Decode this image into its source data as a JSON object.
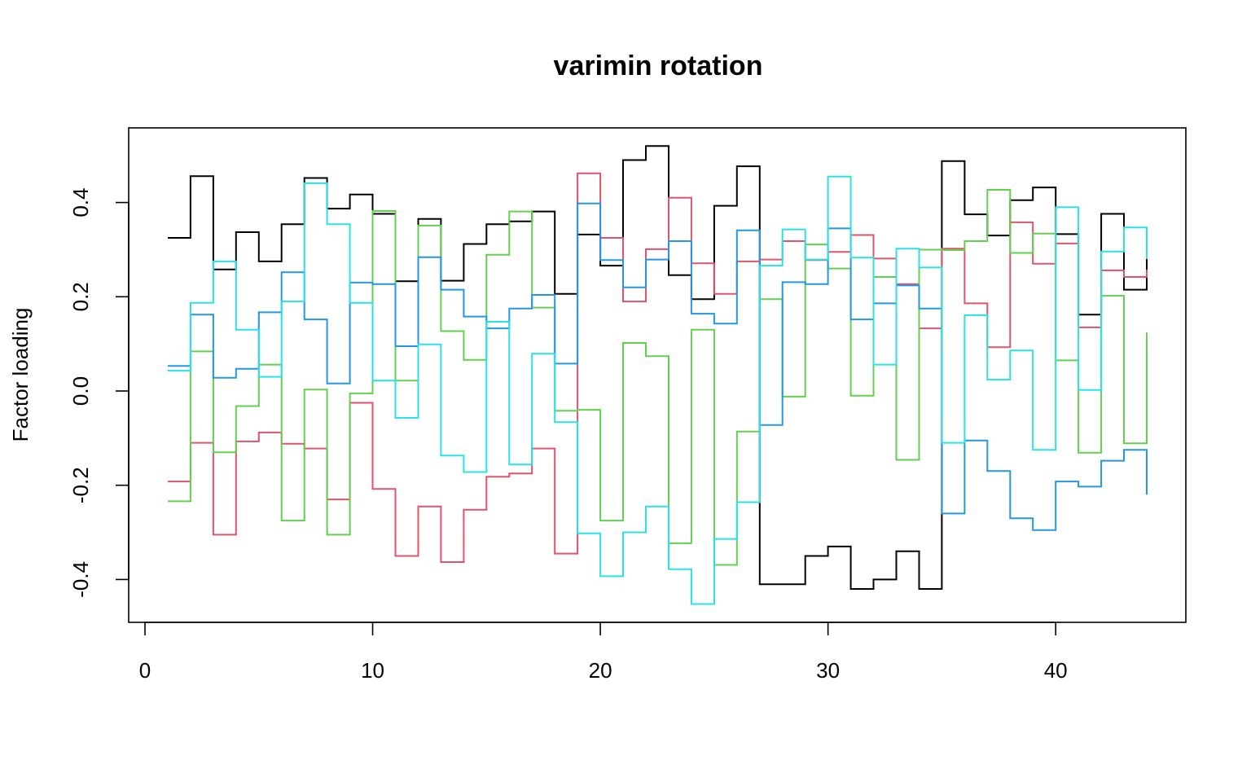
{
  "chart_data": {
    "type": "line",
    "step": true,
    "title": "varimin rotation",
    "xlabel": "",
    "ylabel": "Factor loading",
    "xlim": [
      0,
      45
    ],
    "ylim": [
      -0.5,
      0.55
    ],
    "xticks": [
      0,
      10,
      20,
      30,
      40
    ],
    "yticks": [
      -0.4,
      -0.2,
      0.0,
      0.2,
      0.4
    ],
    "ytick_labels": [
      "-0.4",
      "-0.2",
      "0.0",
      "0.2",
      "0.4"
    ],
    "x": [
      1,
      2,
      3,
      4,
      5,
      6,
      7,
      8,
      9,
      10,
      11,
      12,
      13,
      14,
      15,
      16,
      17,
      18,
      19,
      20,
      21,
      22,
      23,
      24,
      25,
      26,
      27,
      28,
      29,
      30,
      31,
      32,
      33,
      34,
      35,
      36,
      37,
      38,
      39,
      40,
      41,
      42,
      43,
      44
    ],
    "series": [
      {
        "color": "#000000",
        "values": [
          0.325,
          0.456,
          0.258,
          0.337,
          0.275,
          0.354,
          0.452,
          0.387,
          0.417,
          0.376,
          0.233,
          0.365,
          0.234,
          0.312,
          0.354,
          0.36,
          0.381,
          0.206,
          0.332,
          0.266,
          0.49,
          0.52,
          0.246,
          0.195,
          0.393,
          0.477,
          -0.41,
          -0.41,
          -0.35,
          -0.33,
          -0.42,
          -0.4,
          -0.34,
          -0.42,
          0.488,
          0.375,
          0.33,
          0.405,
          0.432,
          0.333,
          0.162,
          0.376,
          0.215,
          0.282
        ]
      },
      {
        "color": "#df536b",
        "values": [
          -0.192,
          -0.11,
          -0.305,
          -0.107,
          -0.088,
          -0.112,
          -0.122,
          -0.23,
          -0.025,
          -0.208,
          -0.35,
          -0.245,
          -0.363,
          -0.252,
          -0.182,
          -0.175,
          -0.122,
          -0.345,
          0.462,
          0.325,
          0.19,
          0.301,
          0.41,
          0.271,
          0.206,
          0.275,
          0.279,
          0.318,
          0.278,
          0.295,
          0.331,
          0.281,
          0.227,
          0.133,
          0.302,
          0.186,
          0.093,
          0.358,
          0.27,
          0.313,
          0.135,
          0.256,
          0.242,
          0.258
        ]
      },
      {
        "color": "#61d04f",
        "values": [
          -0.234,
          0.084,
          -0.13,
          -0.032,
          0.056,
          -0.275,
          0.003,
          -0.305,
          -0.005,
          0.382,
          0.022,
          0.351,
          0.127,
          0.066,
          0.289,
          0.381,
          0.177,
          -0.042,
          -0.04,
          -0.275,
          0.102,
          0.074,
          -0.323,
          0.13,
          -0.369,
          -0.086,
          0.195,
          -0.012,
          0.311,
          0.26,
          -0.01,
          0.242,
          -0.146,
          0.3,
          0.299,
          0.318,
          0.427,
          0.293,
          0.334,
          0.065,
          -0.131,
          0.202,
          -0.111,
          0.124
        ]
      },
      {
        "color": "#2297e6",
        "values": [
          0.053,
          0.162,
          0.028,
          0.047,
          0.167,
          0.252,
          0.152,
          0.016,
          0.23,
          0.227,
          0.095,
          0.284,
          0.215,
          0.158,
          0.133,
          0.175,
          0.204,
          0.058,
          0.398,
          0.278,
          0.22,
          0.279,
          0.318,
          0.164,
          0.143,
          0.341,
          -0.072,
          0.231,
          0.227,
          0.345,
          0.152,
          0.186,
          0.224,
          0.175,
          -0.26,
          -0.105,
          -0.17,
          -0.27,
          -0.295,
          -0.192,
          -0.203,
          -0.148,
          -0.125,
          -0.22
        ]
      },
      {
        "color": "#28e2e5",
        "values": [
          0.043,
          0.187,
          0.275,
          0.13,
          0.03,
          0.19,
          0.441,
          0.354,
          0.187,
          0.022,
          -0.057,
          0.099,
          -0.137,
          -0.172,
          0.147,
          -0.156,
          0.079,
          -0.066,
          -0.302,
          -0.393,
          -0.3,
          -0.245,
          -0.378,
          -0.452,
          -0.314,
          -0.236,
          0.266,
          0.343,
          0.279,
          0.455,
          0.283,
          0.056,
          0.302,
          0.262,
          -0.11,
          0.161,
          0.024,
          0.086,
          -0.125,
          0.39,
          0.002,
          0.296,
          0.347,
          0.28
        ]
      }
    ]
  }
}
